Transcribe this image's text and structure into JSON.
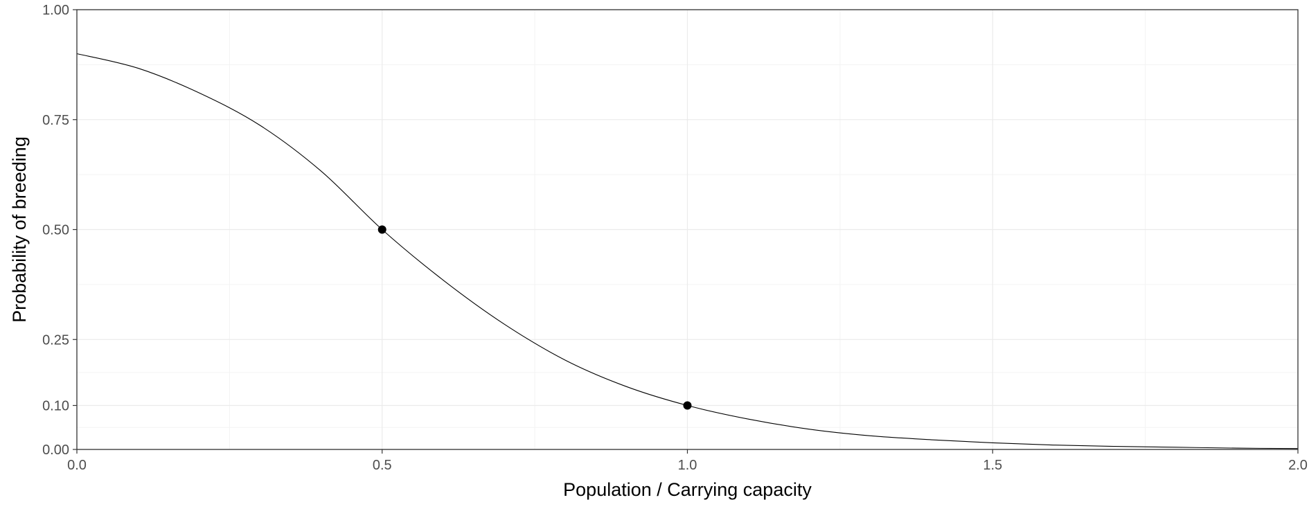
{
  "chart_data": {
    "type": "line",
    "title": "",
    "xlabel": "Population / Carrying capacity",
    "ylabel": "Probability of breeding",
    "xlim": [
      0,
      2
    ],
    "ylim": [
      0,
      1
    ],
    "x_ticks": [
      {
        "value": 0,
        "label": "0.0"
      },
      {
        "value": 0.5,
        "label": "0.5"
      },
      {
        "value": 1,
        "label": "1.0"
      },
      {
        "value": 1.5,
        "label": "1.5"
      },
      {
        "value": 2,
        "label": "2.0"
      }
    ],
    "y_ticks": [
      {
        "value": 0,
        "label": "0.00"
      },
      {
        "value": 0.1,
        "label": "0.10"
      },
      {
        "value": 0.25,
        "label": "0.25"
      },
      {
        "value": 0.5,
        "label": "0.50"
      },
      {
        "value": 0.75,
        "label": "0.75"
      },
      {
        "value": 1,
        "label": "1.00"
      }
    ],
    "grid": true,
    "legend": "none",
    "series": [
      {
        "x": [
          0,
          0.1,
          0.2,
          0.3,
          0.4,
          0.5,
          0.6,
          0.7,
          0.8,
          0.9,
          1.0,
          1.1,
          1.2,
          1.3,
          1.4,
          1.5,
          1.6,
          1.7,
          1.8,
          1.9,
          2.0
        ],
        "y": [
          0.9,
          0.867,
          0.811,
          0.737,
          0.633,
          0.5,
          0.385,
          0.285,
          0.203,
          0.143,
          0.1,
          0.069,
          0.046,
          0.031,
          0.022,
          0.015,
          0.01,
          0.007,
          0.005,
          0.003,
          0.002
        ]
      }
    ],
    "points": [
      {
        "x": 0.5,
        "y": 0.5
      },
      {
        "x": 1.0,
        "y": 0.1
      }
    ],
    "colors": {
      "line": "#000000",
      "points": "#000000",
      "grid_major": "#ebebeb",
      "grid_minor": "#f3f3f3",
      "panel_border": "#333333",
      "tick_label": "#4d4d4d"
    }
  }
}
